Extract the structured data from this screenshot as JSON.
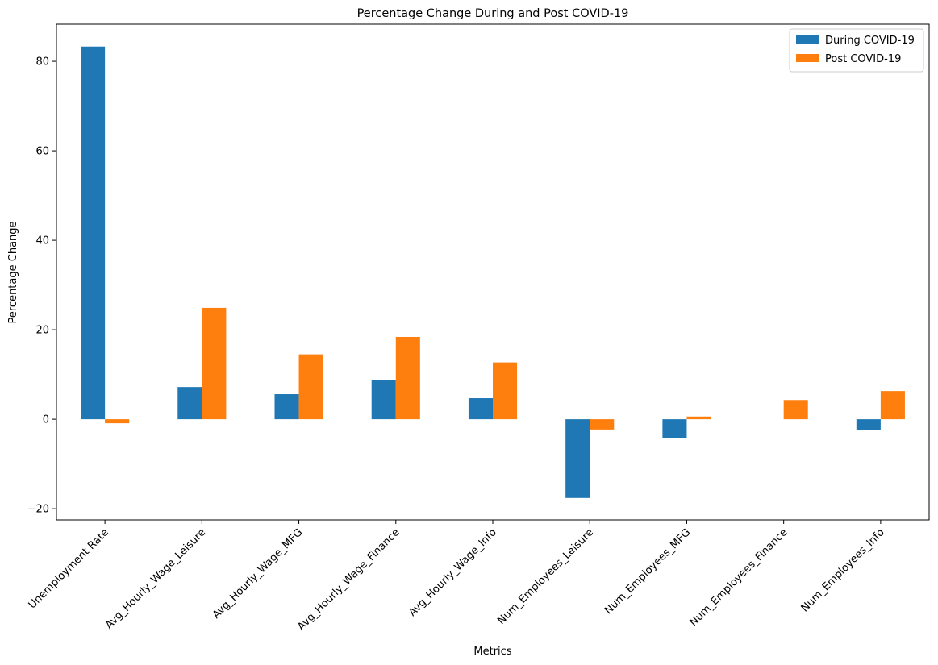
{
  "chart_data": {
    "type": "bar",
    "title": "Percentage Change During and Post COVID-19",
    "xlabel": "Metrics",
    "ylabel": "Percentage Change",
    "categories": [
      "Unemployment Rate",
      "Avg_Hourly_Wage_Leisure",
      "Avg_Hourly_Wage_MFG",
      "Avg_Hourly_Wage_Finance",
      "Avg_Hourly_Wage_Info",
      "Num_Employees_Leisure",
      "Num_Employees_MFG",
      "Num_Employees_Finance",
      "Num_Employees_Info"
    ],
    "series": [
      {
        "name": "During COVID-19",
        "color": "#1f77b4",
        "values": [
          83.3,
          7.2,
          5.6,
          8.7,
          4.7,
          -17.6,
          -4.2,
          0.0,
          -2.5
        ]
      },
      {
        "name": "Post COVID-19",
        "color": "#ff7f0e",
        "values": [
          -0.9,
          24.9,
          14.5,
          18.4,
          12.7,
          -2.3,
          0.6,
          4.3,
          6.3
        ]
      }
    ],
    "ylim": [
      -22.5,
      88.3
    ],
    "yticks": [
      -20,
      0,
      20,
      40,
      60,
      80
    ],
    "ytick_labels": [
      "−20",
      "0",
      "20",
      "40",
      "60",
      "80"
    ],
    "grid": false,
    "legend_position": "top-right"
  }
}
